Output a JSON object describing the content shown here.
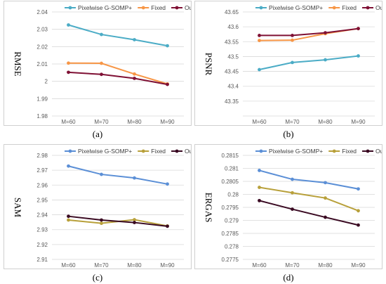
{
  "chart_data": [
    {
      "id": "a",
      "type": "line",
      "caption": "(a)",
      "ylabel": "RMSE",
      "categories": [
        "M=60",
        "M=70",
        "M=80",
        "M=90"
      ],
      "ylim": [
        1.98,
        2.04
      ],
      "yticks": [
        1.98,
        1.99,
        2,
        2.01,
        2.02,
        2.03,
        2.04
      ],
      "yticklabels": [
        "1.98",
        "1.99",
        "2",
        "2.01",
        "2.02",
        "2.03",
        "2.04"
      ],
      "legend_position": "top-right",
      "series": [
        {
          "name": "Pixelwise G-SOMP+",
          "color": "#4BACC6",
          "values": [
            2.0325,
            2.027,
            2.024,
            2.0205
          ]
        },
        {
          "name": "Fixed",
          "color": "#F79646",
          "values": [
            2.0105,
            2.0104,
            2.0042,
            1.9985
          ]
        },
        {
          "name": "Our",
          "color": "#7F1034",
          "values": [
            2.0052,
            2.004,
            2.0017,
            1.9982
          ]
        }
      ]
    },
    {
      "id": "b",
      "type": "line",
      "caption": "(b)",
      "ylabel": "PSNR",
      "categories": [
        "M=60",
        "M=70",
        "M=80",
        "M=90"
      ],
      "ylim": [
        43.3,
        43.65
      ],
      "yticks": [
        43.3,
        43.35,
        43.4,
        43.45,
        43.5,
        43.55,
        43.6,
        43.65
      ],
      "yticklabels": [
        "",
        "43.35",
        "43.4",
        "43.45",
        "43.5",
        "43.55",
        "43.6",
        "43.65"
      ],
      "legend_position": "top-right",
      "series": [
        {
          "name": "Pixelwise G-SOMP+",
          "color": "#4BACC6",
          "values": [
            43.456,
            43.48,
            43.489,
            43.502
          ]
        },
        {
          "name": "Fixed",
          "color": "#F79646",
          "values": [
            43.554,
            43.555,
            43.577,
            43.594
          ]
        },
        {
          "name": "Our",
          "color": "#7F1034",
          "values": [
            43.571,
            43.571,
            43.58,
            43.594
          ]
        }
      ]
    },
    {
      "id": "c",
      "type": "line",
      "caption": "(c)",
      "ylabel": "SAM",
      "categories": [
        "M=60",
        "M=70",
        "M=80",
        "M=90"
      ],
      "ylim": [
        2.91,
        2.98
      ],
      "yticks": [
        2.91,
        2.92,
        2.93,
        2.94,
        2.95,
        2.96,
        2.97,
        2.98
      ],
      "yticklabels": [
        "2.91",
        "2.92",
        "2.93",
        "2.94",
        "2.95",
        "2.96",
        "2.97",
        "2.98"
      ],
      "legend_position": "top-right",
      "series": [
        {
          "name": "Pixelwise G-SOMP+",
          "color": "#5B8FD6",
          "values": [
            2.9728,
            2.9672,
            2.9648,
            2.9607
          ]
        },
        {
          "name": "Fixed",
          "color": "#B8A03A",
          "values": [
            2.9365,
            2.9343,
            2.9367,
            2.9325
          ]
        },
        {
          "name": "Our",
          "color": "#3A0A22",
          "values": [
            2.939,
            2.9365,
            2.9348,
            2.9323
          ]
        }
      ]
    },
    {
      "id": "d",
      "type": "line",
      "caption": "(d)",
      "ylabel": "ERGAS",
      "categories": [
        "M=60",
        "M=70",
        "M=80",
        "M=90"
      ],
      "ylim": [
        0.2775,
        0.2815
      ],
      "yticks": [
        0.2775,
        0.278,
        0.2785,
        0.279,
        0.2795,
        0.28,
        0.2805,
        0.281,
        0.2815
      ],
      "yticklabels": [
        "0.2775",
        "0.278",
        "0.2785",
        "0.279",
        "0.2795",
        "0.28",
        "0.2805",
        "0.281",
        "0.2815"
      ],
      "legend_position": "top-right",
      "series": [
        {
          "name": "Pixelwise G-SOMP+",
          "color": "#5B8FD6",
          "values": [
            0.28092,
            0.28058,
            0.28045,
            0.28021
          ]
        },
        {
          "name": "Fixed",
          "color": "#B8A03A",
          "values": [
            0.28027,
            0.28006,
            0.27986,
            0.27937
          ]
        },
        {
          "name": "Our",
          "color": "#3A0A22",
          "values": [
            0.27976,
            0.27943,
            0.27912,
            0.27882
          ]
        }
      ]
    }
  ]
}
